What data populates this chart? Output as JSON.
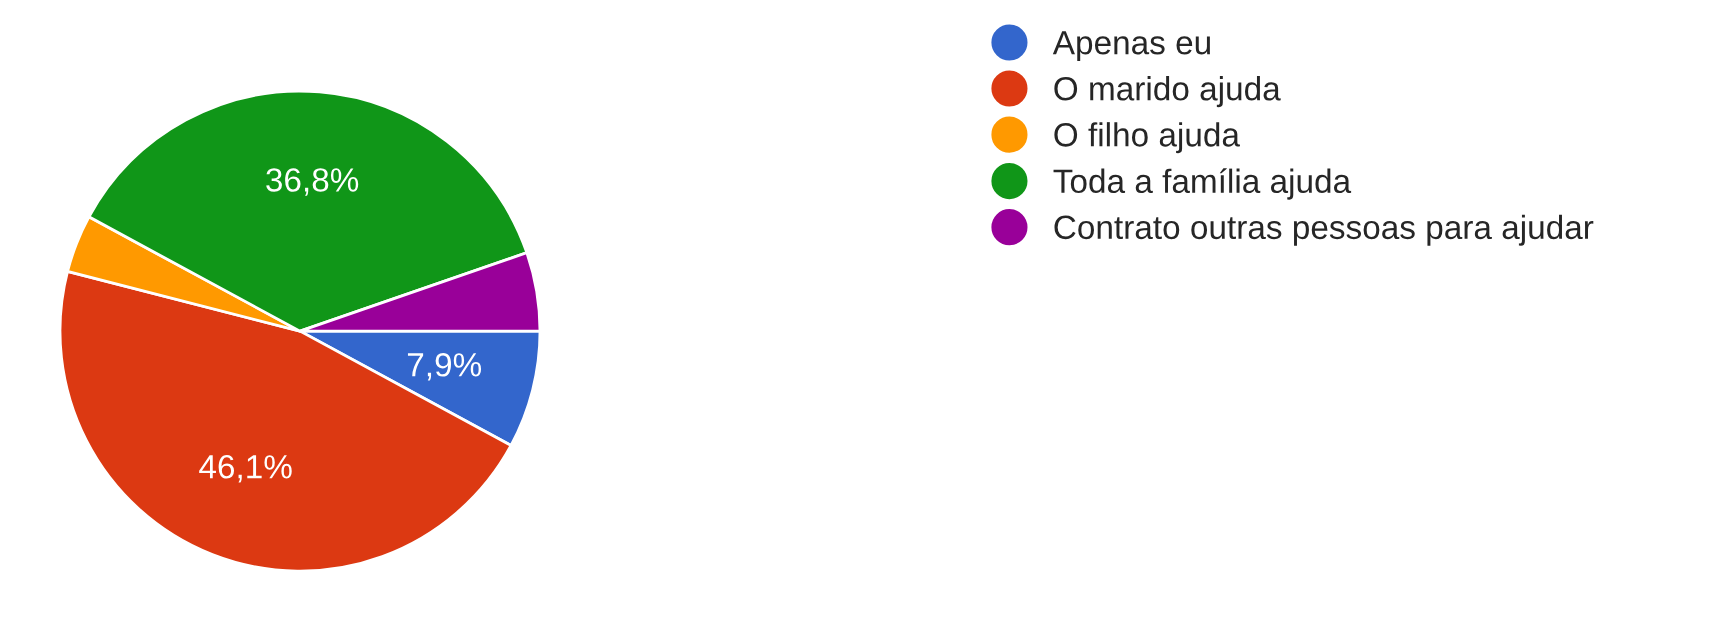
{
  "chart_data": {
    "type": "pie",
    "categories": [
      "Apenas eu",
      "O marido ajuda",
      "O filho ajuda",
      "Toda a família ajuda",
      "Contrato outras pessoas para ajudar"
    ],
    "values": [
      7.9,
      46.1,
      3.9,
      36.8,
      5.3
    ],
    "value_labels": [
      "7,9%",
      "46,1%",
      null,
      "36,8%",
      null
    ],
    "colors": [
      "#3366cc",
      "#dc3912",
      "#ff9900",
      "#109618",
      "#990099"
    ],
    "legend": "right"
  }
}
